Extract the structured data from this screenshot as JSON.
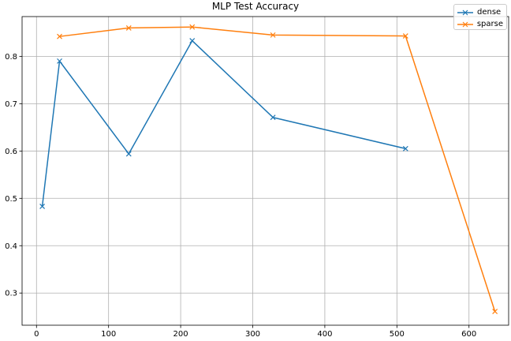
{
  "figure": {
    "title": "MLP Test Accuracy"
  },
  "chart_data": {
    "type": "line",
    "title": "MLP Test Accuracy",
    "xlabel": "",
    "ylabel": "",
    "xlim": [
      -20,
      655
    ],
    "ylim": [
      0.232,
      0.884
    ],
    "xticks": [
      0,
      100,
      200,
      300,
      400,
      500,
      600
    ],
    "yticks": [
      0.3,
      0.4,
      0.5,
      0.6,
      0.7,
      0.8
    ],
    "xtick_labels": [
      "0",
      "100",
      "200",
      "300",
      "400",
      "500",
      "600"
    ],
    "ytick_labels": [
      "0.3",
      "0.4",
      "0.5",
      "0.6",
      "0.7",
      "0.8"
    ],
    "grid": true,
    "legend_position": "top-right",
    "marker": "x",
    "series": [
      {
        "name": "dense",
        "color": "#1f77b4",
        "x": [
          8,
          32,
          128,
          216,
          328,
          512
        ],
        "y": [
          0.483,
          0.79,
          0.594,
          0.833,
          0.671,
          0.605
        ]
      },
      {
        "name": "sparse",
        "color": "#ff7f0e",
        "x": [
          32,
          128,
          216,
          328,
          512,
          636
        ],
        "y": [
          0.842,
          0.86,
          0.862,
          0.845,
          0.843,
          0.261
        ]
      }
    ]
  }
}
